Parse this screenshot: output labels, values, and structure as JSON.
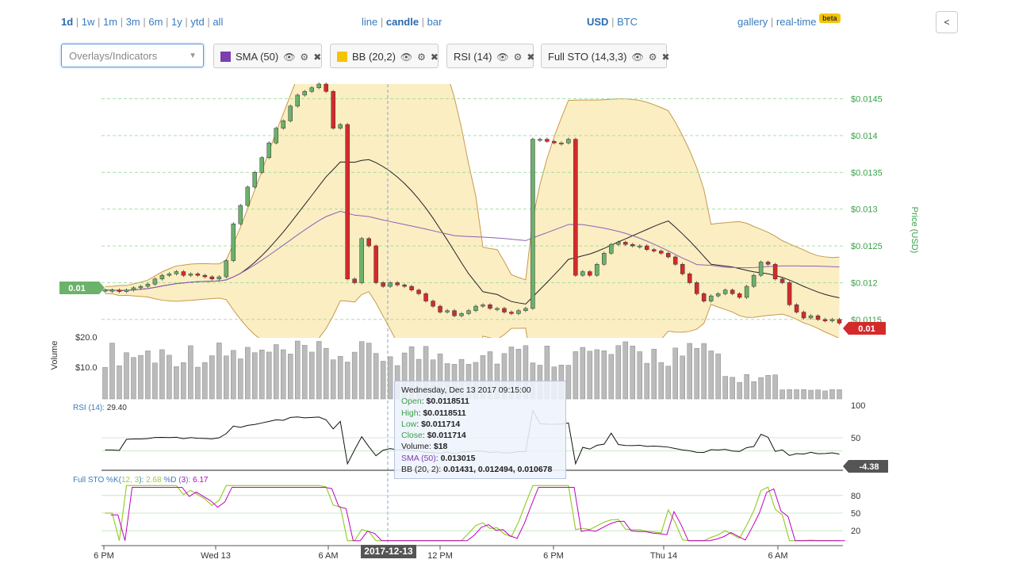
{
  "ranges": [
    "1d",
    "1w",
    "1m",
    "3m",
    "6m",
    "1y",
    "ytd",
    "all"
  ],
  "chart_types": [
    "line",
    "candle",
    "bar"
  ],
  "currencies": [
    "USD",
    "BTC"
  ],
  "links": {
    "gallery": "gallery",
    "realtime": "real-time",
    "beta": "beta"
  },
  "collapse_label": "<",
  "indicator_select_placeholder": "Overlays/Indicators",
  "chips": [
    {
      "label": "SMA (50)",
      "color": "#7b3fb0"
    },
    {
      "label": "BB (20,2)",
      "color": "#f5c400"
    },
    {
      "label": "RSI (14)",
      "color": ""
    },
    {
      "label": "Full STO (14,3,3)",
      "color": ""
    }
  ],
  "chart_data": {
    "type": "candlestick",
    "price_axis": {
      "label": "Price (USD)",
      "ticks": [
        "$0.0145",
        "$0.014",
        "$0.0135",
        "$0.013",
        "$0.0125",
        "$0.012",
        "$0.0115"
      ],
      "ylim": [
        0.01125,
        0.0147
      ]
    },
    "left_marker": "0.01",
    "right_marker": "0.01",
    "volume_axis": {
      "label": "Volume",
      "ticks": [
        "$20.0",
        "$10.0"
      ]
    },
    "rsi": {
      "label": "RSI (14):",
      "value": "29.40",
      "ticks": [
        "100",
        "50"
      ],
      "marker": "-4.38"
    },
    "sto": {
      "label": "Full STO %K(",
      "k_param": "12, 3",
      "k_close": "):",
      "k_value": "2.68",
      "d_label": "%D (",
      "d_param": "3",
      "d_close": "):",
      "d_value": "6.17",
      "ticks": [
        "80",
        "50",
        "20"
      ]
    },
    "x_ticks": [
      "6 PM",
      "Wed 13",
      "6 AM",
      "12 PM",
      "6 PM",
      "Thu 14",
      "6 AM"
    ],
    "crosshair_date": "2017-12-13",
    "closes": [
      0.0119,
      0.0119,
      0.01188,
      0.0119,
      0.01193,
      0.01195,
      0.01198,
      0.01205,
      0.0121,
      0.01212,
      0.01215,
      0.0121,
      0.01212,
      0.0121,
      0.01208,
      0.01205,
      0.01208,
      0.0123,
      0.0128,
      0.01305,
      0.0133,
      0.0135,
      0.0137,
      0.0139,
      0.0141,
      0.0142,
      0.0144,
      0.01455,
      0.0146,
      0.01465,
      0.0147,
      0.0146,
      0.0141,
      0.01415,
      0.01205,
      0.012,
      0.0126,
      0.0125,
      0.012,
      0.01195,
      0.012,
      0.01197,
      0.01195,
      0.0119,
      0.01185,
      0.01175,
      0.01168,
      0.0116,
      0.01162,
      0.01155,
      0.01158,
      0.01162,
      0.01168,
      0.0117,
      0.01165,
      0.01165,
      0.0116,
      0.01158,
      0.01162,
      0.01165,
      0.01395,
      0.01395,
      0.01392,
      0.0139,
      0.0139,
      0.01395,
      0.0121,
      0.01215,
      0.0121,
      0.01225,
      0.0124,
      0.01252,
      0.01255,
      0.01252,
      0.0125,
      0.0125,
      0.01245,
      0.01243,
      0.0124,
      0.01235,
      0.01225,
      0.01212,
      0.012,
      0.01185,
      0.01175,
      0.01182,
      0.01185,
      0.0119,
      0.01185,
      0.0118,
      0.01195,
      0.0121,
      0.01228,
      0.01225,
      0.01205,
      0.012,
      0.0117,
      0.0116,
      0.01152,
      0.01155,
      0.0115,
      0.01148,
      0.0115,
      0.01145
    ],
    "tooltip": {
      "date": "Wednesday, Dec 13 2017 09:15:00",
      "open_label": "Open",
      "open": "$0.0118511",
      "high_label": "High",
      "high": "$0.0118511",
      "low_label": "Low",
      "low": "$0.011714",
      "close_label": "Close",
      "close": "$0.011714",
      "volume_label": "Volume",
      "volume": "$18",
      "sma_label": "SMA (50)",
      "sma": "0.013015",
      "bb_label": "BB (20, 2)",
      "bb": "0.01431, 0.012494, 0.010678"
    }
  }
}
